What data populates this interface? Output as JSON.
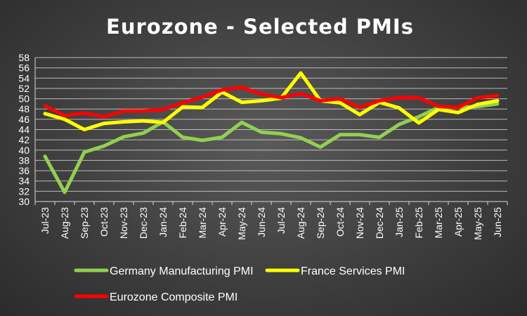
{
  "chart_data": {
    "type": "line",
    "title": "Eurozone - Selected PMIs",
    "xlabel": "",
    "ylabel": "",
    "ylim": [
      30,
      58
    ],
    "ytick_step": 2,
    "yticks": [
      "30",
      "32",
      "34",
      "36",
      "38",
      "40",
      "42",
      "44",
      "46",
      "48",
      "50",
      "52",
      "54",
      "56",
      "58"
    ],
    "grid": true,
    "legend_position": "bottom",
    "categories": [
      "Jul-23",
      "Aug-23",
      "Sep-23",
      "Oct-23",
      "Nov-23",
      "Dec-23",
      "Jan-24",
      "Feb-24",
      "Mar-24",
      "Apr-24",
      "May-24",
      "Jun-24",
      "Jul-24",
      "Aug-24",
      "Sep-24",
      "Oct-24",
      "Nov-24",
      "Dec-24",
      "Jan-25",
      "Feb-25",
      "Mar-25",
      "Apr-25",
      "May-25",
      "Jun-25"
    ],
    "series": [
      {
        "name": "Germany Manufacturing PMI",
        "color": "#92d050",
        "values": [
          38.8,
          31.8,
          39.6,
          40.8,
          42.6,
          43.3,
          45.5,
          42.5,
          41.9,
          42.5,
          45.4,
          43.5,
          43.2,
          42.4,
          40.6,
          43.0,
          43.0,
          42.5,
          45.0,
          46.5,
          48.3,
          48.3,
          48.5,
          49.0
        ]
      },
      {
        "name": "France Services PMI",
        "color": "#ffff00",
        "values": [
          47.1,
          46.0,
          44.0,
          45.2,
          45.5,
          45.7,
          45.4,
          48.4,
          48.3,
          51.3,
          49.3,
          49.6,
          50.1,
          55.0,
          49.6,
          49.2,
          46.9,
          49.3,
          48.2,
          45.3,
          47.9,
          47.3,
          48.9,
          49.6
        ]
      },
      {
        "name": "Eurozone Composite PMI",
        "color": "#ff0000",
        "values": [
          48.6,
          46.7,
          47.2,
          46.5,
          47.6,
          47.6,
          47.9,
          49.2,
          50.3,
          51.7,
          52.2,
          50.9,
          50.2,
          51.0,
          49.6,
          50.0,
          48.3,
          49.6,
          50.2,
          50.2,
          48.5,
          48.3,
          50.2,
          50.6
        ]
      }
    ]
  }
}
